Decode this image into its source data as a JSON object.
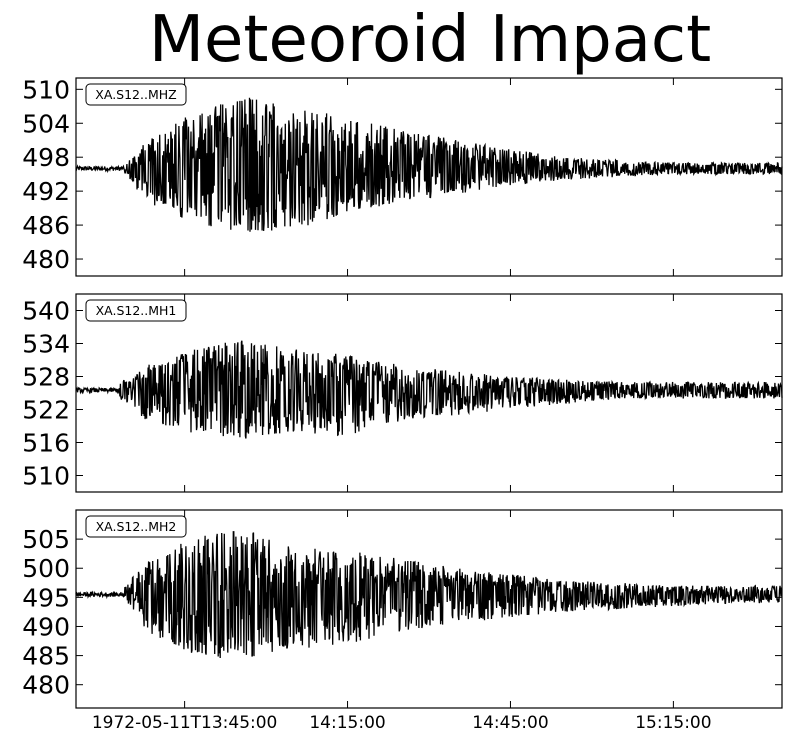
{
  "title": "Meteoroid Impact",
  "colors": {
    "trace": "#000000",
    "axes": "#000000",
    "background": "#ffffff"
  },
  "x_tick_labels": [
    "1972-05-11T13:45:00",
    "14:15:00",
    "14:45:00",
    "15:15:00"
  ],
  "chart_data": [
    {
      "type": "line",
      "title": "",
      "label": "XA.S12..MHZ",
      "xlabel": "",
      "ylabel": "",
      "x_range": [
        "1972-05-11T13:25:00",
        "1972-05-11T15:35:00"
      ],
      "x_ticks": [
        "1972-05-11T13:45:00",
        "1972-05-11T14:15:00",
        "1972-05-11T14:45:00",
        "1972-05-11T15:15:00"
      ],
      "ylim": [
        477,
        512
      ],
      "yticks": [
        480,
        486,
        492,
        498,
        504,
        510
      ],
      "baseline": 496,
      "signal_onset": "1972-05-11T13:34:00",
      "envelope": {
        "x": [
          "1972-05-11T13:34:00",
          "1972-05-11T13:38:00",
          "1972-05-11T13:45:00",
          "1972-05-11T13:55:00",
          "1972-05-11T14:05:00",
          "1972-05-11T14:15:00",
          "1972-05-11T14:25:00",
          "1972-05-11T14:35:00",
          "1972-05-11T14:45:00",
          "1972-05-11T14:55:00",
          "1972-05-11T15:05:00",
          "1972-05-11T15:15:00",
          "1972-05-11T15:25:00",
          "1972-05-11T15:35:00"
        ],
        "upper": [
          497,
          501,
          505,
          509,
          507,
          505,
          503,
          501,
          499.5,
          498,
          497.5,
          497,
          497,
          497
        ],
        "lower": [
          495,
          490,
          487,
          484,
          485,
          488,
          490,
          491.5,
          493,
          494,
          494.5,
          495,
          495,
          495
        ]
      }
    },
    {
      "type": "line",
      "title": "",
      "label": "XA.S12..MH1",
      "xlabel": "",
      "ylabel": "",
      "x_range": [
        "1972-05-11T13:25:00",
        "1972-05-11T15:35:00"
      ],
      "x_ticks": [
        "1972-05-11T13:45:00",
        "1972-05-11T14:15:00",
        "1972-05-11T14:45:00",
        "1972-05-11T15:15:00"
      ],
      "ylim": [
        507,
        543
      ],
      "yticks": [
        510,
        516,
        522,
        528,
        534,
        540
      ],
      "baseline": 525.5,
      "signal_onset": "1972-05-11T13:33:00",
      "envelope": {
        "x": [
          "1972-05-11T13:33:00",
          "1972-05-11T13:38:00",
          "1972-05-11T13:45:00",
          "1972-05-11T13:55:00",
          "1972-05-11T14:05:00",
          "1972-05-11T14:15:00",
          "1972-05-11T14:25:00",
          "1972-05-11T14:35:00",
          "1972-05-11T14:45:00",
          "1972-05-11T14:55:00",
          "1972-05-11T15:05:00",
          "1972-05-11T15:15:00",
          "1972-05-11T15:25:00",
          "1972-05-11T15:35:00"
        ],
        "upper": [
          527,
          530,
          532.5,
          535,
          533,
          532,
          530,
          529,
          528,
          527.5,
          527,
          527,
          527,
          527
        ],
        "lower": [
          524,
          520,
          518,
          516.5,
          518,
          517,
          520,
          521,
          522,
          523,
          524,
          524,
          524,
          524
        ]
      }
    },
    {
      "type": "line",
      "title": "",
      "label": "XA.S12..MH2",
      "xlabel": "",
      "ylabel": "",
      "x_range": [
        "1972-05-11T13:25:00",
        "1972-05-11T15:35:00"
      ],
      "x_ticks": [
        "1972-05-11T13:45:00",
        "1972-05-11T14:15:00",
        "1972-05-11T14:45:00",
        "1972-05-11T15:15:00"
      ],
      "ylim": [
        476,
        510
      ],
      "yticks": [
        480,
        485,
        490,
        495,
        500,
        505
      ],
      "baseline": 495.5,
      "signal_onset": "1972-05-11T13:34:00",
      "envelope": {
        "x": [
          "1972-05-11T13:34:00",
          "1972-05-11T13:38:00",
          "1972-05-11T13:45:00",
          "1972-05-11T13:55:00",
          "1972-05-11T14:05:00",
          "1972-05-11T14:15:00",
          "1972-05-11T14:25:00",
          "1972-05-11T14:35:00",
          "1972-05-11T14:45:00",
          "1972-05-11T14:55:00",
          "1972-05-11T15:05:00",
          "1972-05-11T15:15:00",
          "1972-05-11T15:25:00",
          "1972-05-11T15:35:00"
        ],
        "upper": [
          497,
          501,
          505,
          507,
          504,
          503,
          502,
          500,
          499,
          498,
          497.5,
          497,
          497,
          497
        ],
        "lower": [
          494,
          489,
          485.5,
          484,
          486,
          487,
          489,
          490.5,
          491.5,
          492.5,
          493,
          493.5,
          494,
          494
        ]
      }
    }
  ]
}
